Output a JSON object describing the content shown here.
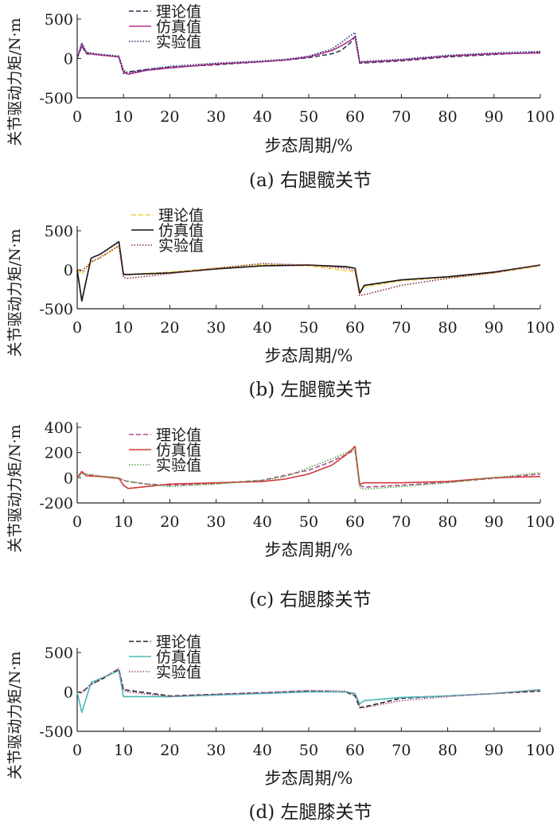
{
  "chart_data": [
    {
      "type": "line",
      "caption": "(a)  右腿髋关节",
      "xlabel": "步态周期/%",
      "ylabel": "关节驱动力矩/N·m",
      "xlim": [
        0,
        100
      ],
      "ylim": [
        -500,
        500
      ],
      "xticks": [
        0,
        10,
        20,
        30,
        40,
        50,
        60,
        70,
        80,
        90,
        100
      ],
      "yticks": [
        -500,
        0,
        500
      ],
      "legend_position": "top-left",
      "series": [
        {
          "name": "理论值",
          "color": "#33334d",
          "dash": "6,3",
          "x": [
            0,
            1,
            2,
            4,
            9,
            10,
            11,
            15,
            20,
            30,
            40,
            45,
            50,
            55,
            57,
            59,
            60,
            61,
            70,
            80,
            90,
            100
          ],
          "y": [
            0,
            160,
            60,
            50,
            20,
            -190,
            -170,
            -140,
            -110,
            -80,
            -40,
            -20,
            10,
            60,
            100,
            200,
            280,
            -60,
            -30,
            20,
            50,
            80
          ]
        },
        {
          "name": "仿真值",
          "color": "#b0308e",
          "dash": "",
          "x": [
            0,
            1,
            2,
            4,
            9,
            10,
            11,
            15,
            20,
            30,
            40,
            45,
            50,
            55,
            57,
            59,
            60,
            61,
            70,
            80,
            90,
            100
          ],
          "y": [
            0,
            180,
            70,
            50,
            20,
            -170,
            -200,
            -150,
            -120,
            -70,
            -40,
            -20,
            20,
            100,
            160,
            230,
            280,
            -50,
            -20,
            30,
            60,
            70
          ]
        },
        {
          "name": "实验值",
          "color": "#1c2e6e",
          "dash": "1.5,2",
          "x": [
            0,
            1,
            2,
            4,
            9,
            10,
            11,
            15,
            20,
            30,
            40,
            45,
            50,
            55,
            57,
            59,
            60,
            61,
            70,
            80,
            90,
            100
          ],
          "y": [
            0,
            200,
            80,
            60,
            30,
            -150,
            -180,
            -140,
            -100,
            -60,
            -30,
            -10,
            30,
            120,
            200,
            290,
            330,
            -40,
            -10,
            40,
            70,
            90
          ]
        }
      ]
    },
    {
      "type": "line",
      "caption": "(b)  左腿髋关节",
      "xlabel": "步态周期/%",
      "ylabel": "关节驱动力矩/N·m",
      "xlim": [
        0,
        100
      ],
      "ylim": [
        -500,
        500
      ],
      "xticks": [
        0,
        10,
        20,
        30,
        40,
        50,
        60,
        70,
        80,
        90,
        100
      ],
      "yticks": [
        -500,
        0,
        500
      ],
      "legend_position": "top-left",
      "series": [
        {
          "name": "理论值",
          "color": "#f0d040",
          "dash": "6,3",
          "x": [
            0,
            1,
            3,
            5,
            9,
            10,
            11,
            20,
            30,
            40,
            50,
            58,
            60,
            61,
            62,
            70,
            80,
            90,
            100
          ],
          "y": [
            0,
            -60,
            100,
            150,
            300,
            -50,
            -60,
            -30,
            20,
            70,
            50,
            -10,
            -30,
            -260,
            -220,
            -140,
            -100,
            -40,
            50
          ]
        },
        {
          "name": "仿真值",
          "color": "#111111",
          "dash": "",
          "x": [
            0,
            1,
            3,
            5,
            9,
            10,
            11,
            20,
            30,
            40,
            50,
            58,
            60,
            61,
            62,
            70,
            80,
            90,
            100
          ],
          "y": [
            0,
            -400,
            150,
            200,
            360,
            -60,
            -60,
            -40,
            10,
            50,
            60,
            40,
            20,
            -300,
            -200,
            -130,
            -90,
            -30,
            60
          ]
        },
        {
          "name": "实验值",
          "color": "#8a2a3a",
          "dash": "1.5,2",
          "x": [
            0,
            1,
            3,
            5,
            9,
            10,
            11,
            20,
            30,
            40,
            50,
            58,
            60,
            61,
            62,
            70,
            80,
            90,
            100
          ],
          "y": [
            0,
            -20,
            100,
            160,
            310,
            -100,
            -110,
            -50,
            20,
            80,
            60,
            20,
            -10,
            -330,
            -320,
            -200,
            -110,
            -40,
            60
          ]
        }
      ]
    },
    {
      "type": "line",
      "caption": "(c)  右腿膝关节",
      "xlabel": "步态周期/%",
      "ylabel": "关节驱动力矩/N·m",
      "xlim": [
        0,
        100
      ],
      "ylim": [
        -200,
        400
      ],
      "xticks": [
        0,
        10,
        20,
        30,
        40,
        50,
        60,
        70,
        80,
        90,
        100
      ],
      "yticks": [
        -200,
        0,
        200,
        400
      ],
      "legend_position": "top-left",
      "series": [
        {
          "name": "理论值",
          "color": "#b04a8e",
          "dash": "6,3",
          "x": [
            0,
            1,
            2,
            5,
            9,
            10,
            11,
            15,
            20,
            30,
            40,
            50,
            55,
            60,
            61,
            62,
            70,
            80,
            90,
            100
          ],
          "y": [
            0,
            40,
            25,
            10,
            -5,
            -20,
            -30,
            -50,
            -60,
            -45,
            -20,
            60,
            130,
            220,
            -60,
            -75,
            -60,
            -35,
            -5,
            30
          ]
        },
        {
          "name": "仿真值",
          "color": "#d03a3a",
          "dash": "",
          "x": [
            0,
            1,
            2,
            5,
            9,
            10,
            11,
            15,
            20,
            30,
            40,
            45,
            50,
            55,
            58,
            60,
            61,
            62,
            70,
            80,
            90,
            100
          ],
          "y": [
            0,
            50,
            15,
            10,
            -5,
            -60,
            -85,
            -70,
            -50,
            -40,
            -30,
            -10,
            30,
            100,
            180,
            250,
            -50,
            -40,
            -40,
            -30,
            0,
            10
          ]
        },
        {
          "name": "实验值",
          "color": "#4ea83a",
          "dash": "1.5,2",
          "x": [
            0,
            1,
            2,
            5,
            9,
            10,
            11,
            15,
            20,
            30,
            40,
            45,
            50,
            55,
            60,
            61,
            62,
            70,
            80,
            90,
            100
          ],
          "y": [
            0,
            30,
            30,
            15,
            0,
            -20,
            -30,
            -50,
            -70,
            -50,
            -20,
            10,
            80,
            150,
            230,
            -80,
            -90,
            -70,
            -40,
            0,
            40
          ]
        }
      ]
    },
    {
      "type": "line",
      "caption": "(d)  左腿膝关节",
      "xlabel": "步态周期/%",
      "ylabel": "关节驱动力矩/N·m",
      "xlim": [
        0,
        100
      ],
      "ylim": [
        -500,
        500
      ],
      "xticks": [
        0,
        10,
        20,
        30,
        40,
        50,
        60,
        70,
        80,
        90,
        100
      ],
      "yticks": [
        -500,
        0,
        500
      ],
      "legend_position": "top-left",
      "series": [
        {
          "name": "理论值",
          "color": "#222222",
          "dash": "6,3",
          "x": [
            0,
            1,
            3,
            5,
            9,
            10,
            11,
            20,
            30,
            40,
            50,
            58,
            60,
            61,
            62,
            70,
            80,
            90,
            100
          ],
          "y": [
            0,
            -10,
            100,
            150,
            290,
            30,
            20,
            -50,
            -30,
            -10,
            10,
            0,
            -50,
            -200,
            -190,
            -80,
            -50,
            -20,
            10
          ]
        },
        {
          "name": "仿真值",
          "color": "#48b8b8",
          "dash": "",
          "x": [
            0,
            1,
            3,
            5,
            9,
            10,
            11,
            20,
            30,
            40,
            50,
            58,
            60,
            61,
            62,
            70,
            80,
            90,
            100
          ],
          "y": [
            0,
            -260,
            120,
            170,
            270,
            -60,
            -60,
            -60,
            -40,
            -20,
            0,
            0,
            -20,
            -150,
            -110,
            -70,
            -50,
            -20,
            30
          ]
        },
        {
          "name": "实验值",
          "color": "#b04a8e",
          "dash": "1.5,2",
          "x": [
            0,
            1,
            3,
            5,
            9,
            10,
            11,
            20,
            30,
            40,
            50,
            58,
            60,
            61,
            62,
            70,
            80,
            90,
            100
          ],
          "y": [
            0,
            0,
            90,
            160,
            300,
            20,
            0,
            -60,
            -30,
            -10,
            20,
            10,
            -40,
            -180,
            -200,
            -110,
            -60,
            -20,
            20
          ]
        }
      ]
    }
  ]
}
